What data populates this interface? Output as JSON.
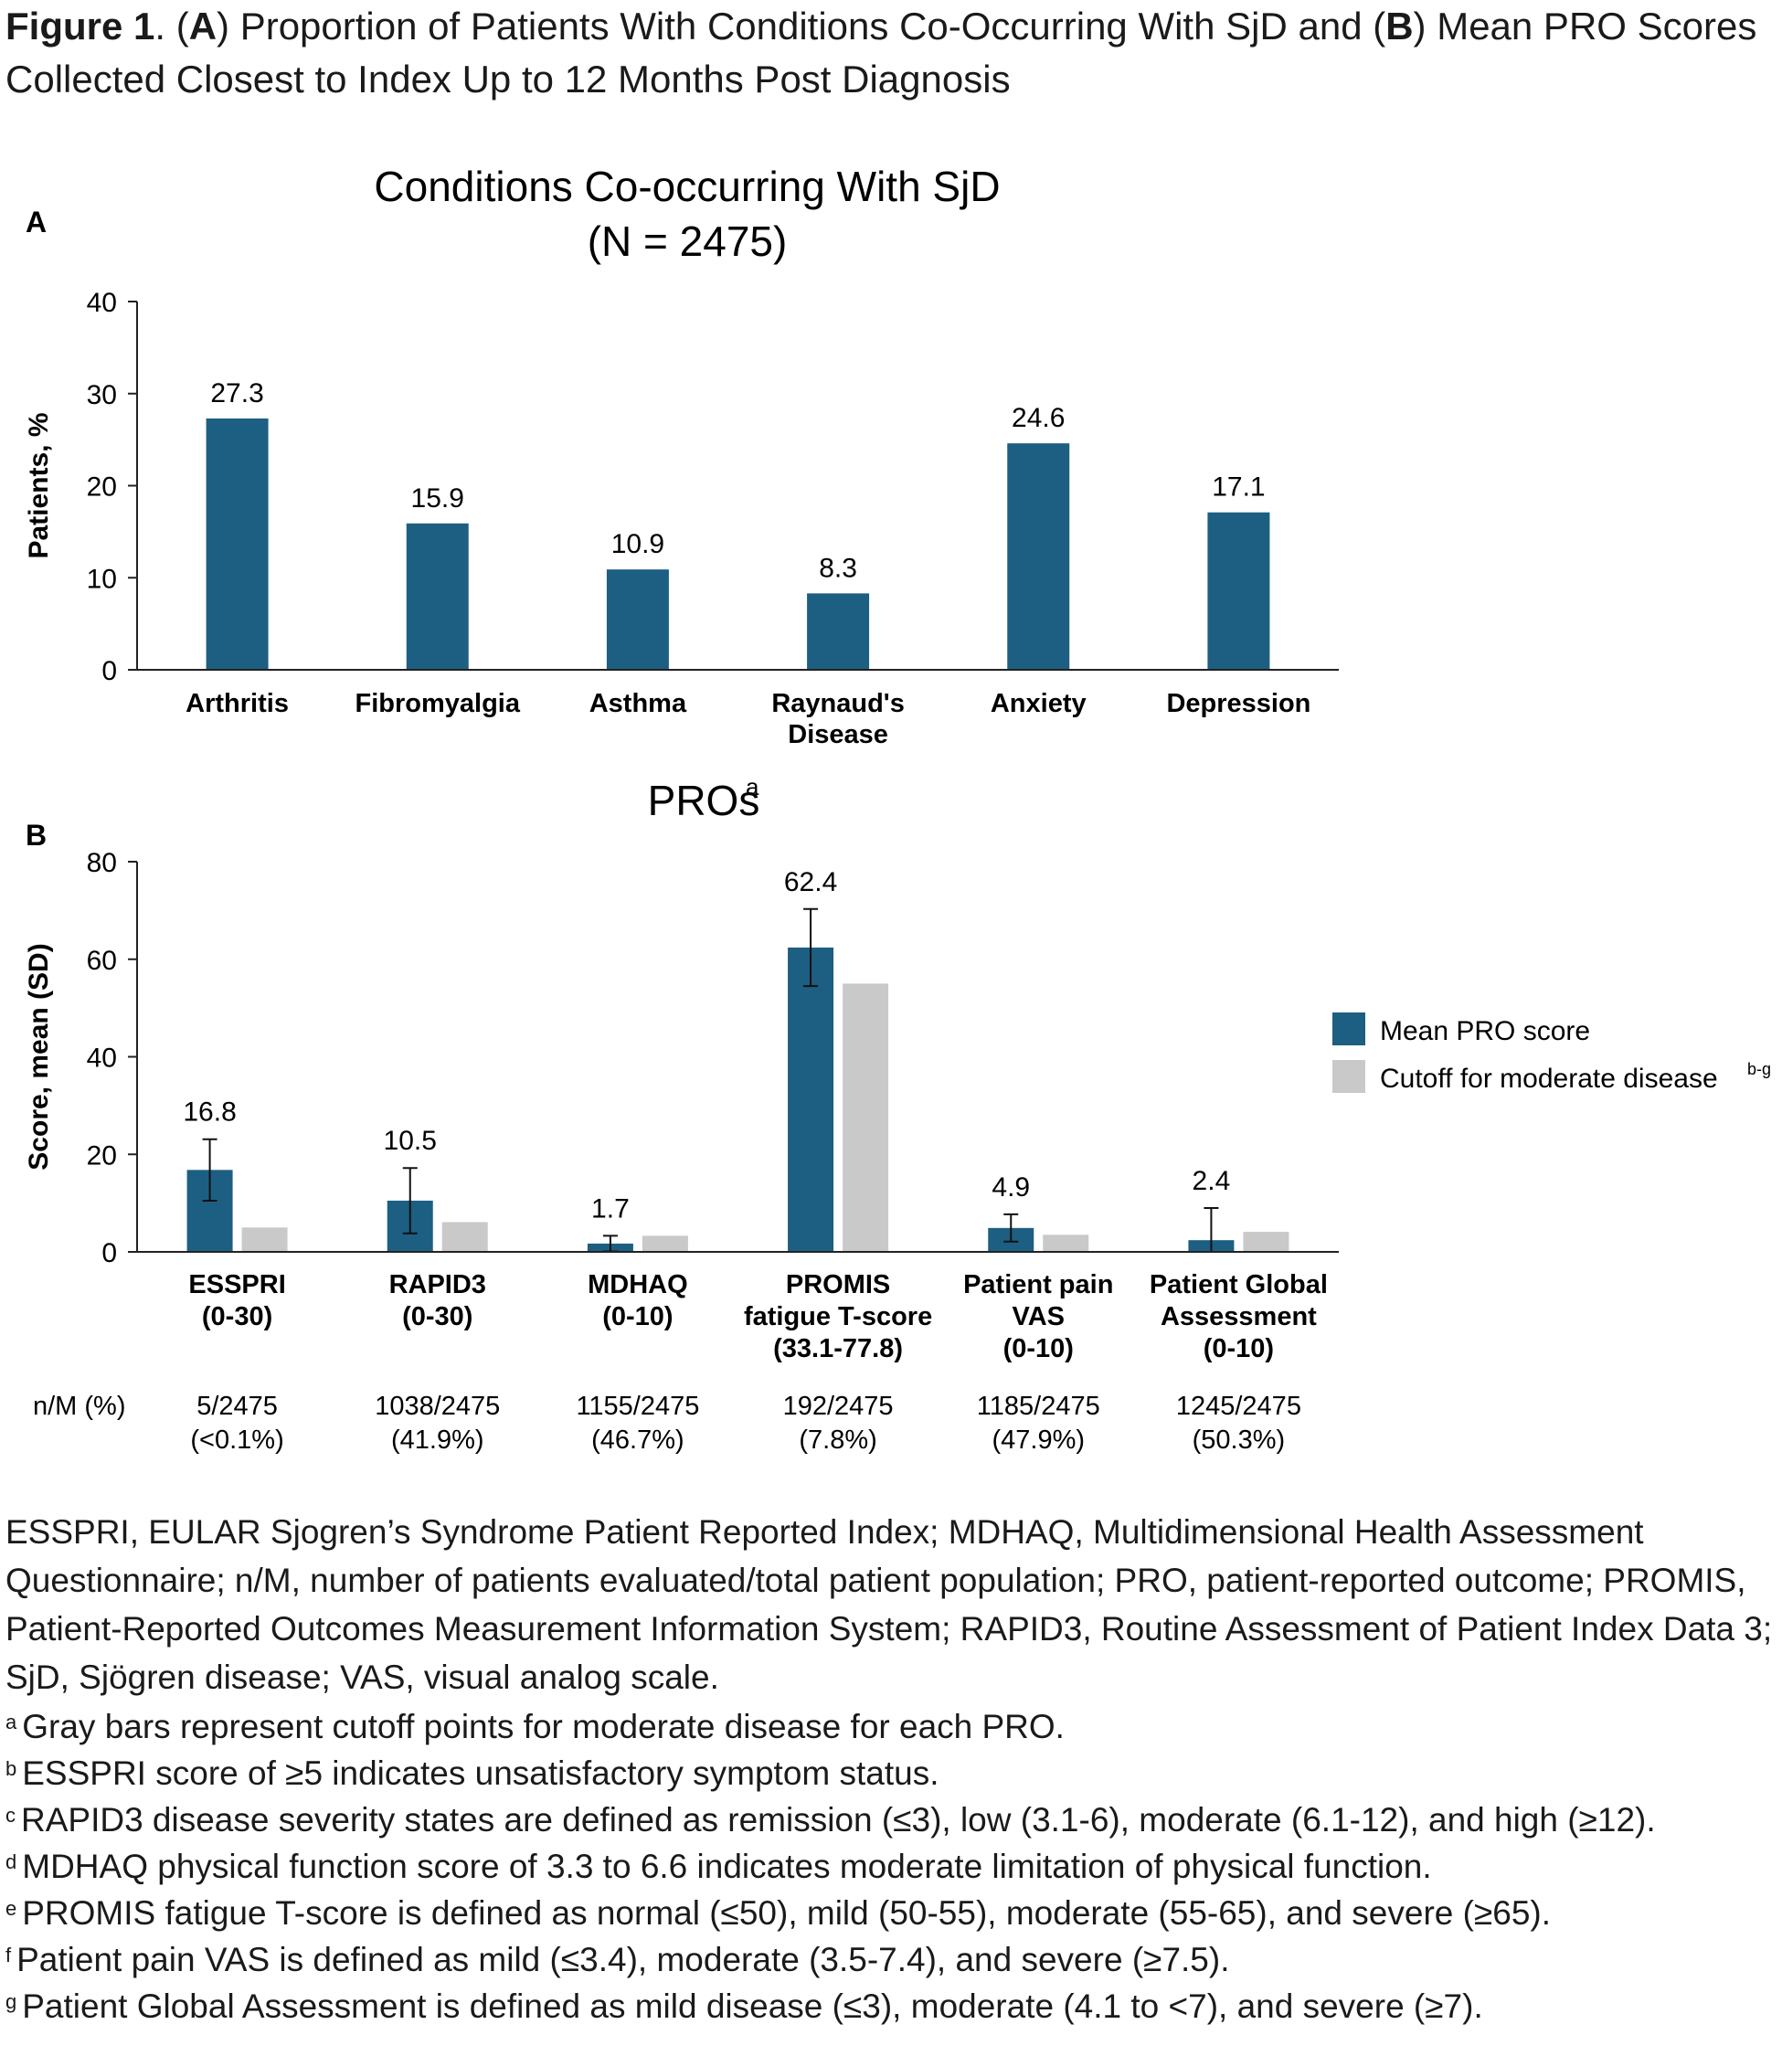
{
  "figure": {
    "label": "Figure 1",
    "part_a": "A",
    "part_b": "B",
    "title_seg1": ". (",
    "title_seg2": ") Proportion of Patients With Conditions Co-Occurring With SjD and (",
    "title_seg3": ") Mean PRO Scores Collected Closest to Index Up to 12 Months Post Diagnosis"
  },
  "colors": {
    "primary": "#1d5f82",
    "cutoff": "#c9c9c9",
    "axis": "#222222"
  },
  "chart_data": [
    {
      "type": "bar",
      "panel_label": "A",
      "title_line1": "Conditions Co-occurring With SjD",
      "title_line2": "(N = 2475)",
      "ylabel": "Patients, %",
      "ylim": [
        0,
        40
      ],
      "yticks": [
        "0",
        "10",
        "20",
        "30",
        "40"
      ],
      "categories": [
        [
          "Arthritis"
        ],
        [
          "Fibromyalgia"
        ],
        [
          "Asthma"
        ],
        [
          "Raynaud's",
          "Disease"
        ],
        [
          "Anxiety"
        ],
        [
          "Depression"
        ]
      ],
      "values": [
        27.3,
        15.9,
        10.9,
        8.3,
        24.6,
        17.1
      ],
      "value_labels": [
        "27.3",
        "15.9",
        "10.9",
        "8.3",
        "24.6",
        "17.1"
      ]
    },
    {
      "type": "bar",
      "panel_label": "B",
      "title": "PROs",
      "title_sup": "a",
      "ylabel": "Score, mean (SD)",
      "ylim": [
        0,
        80
      ],
      "yticks": [
        "0",
        "20",
        "40",
        "60",
        "80"
      ],
      "categories": [
        [
          "ESSPRI",
          "(0-30)"
        ],
        [
          "RAPID3",
          "(0-30)"
        ],
        [
          "MDHAQ",
          "(0-10)"
        ],
        [
          "PROMIS",
          "fatigue T-score",
          "(33.1-77.8)"
        ],
        [
          "Patient pain",
          "VAS",
          "(0-10)"
        ],
        [
          "Patient Global",
          "Assessment",
          "(0-10)"
        ]
      ],
      "series": [
        {
          "name": "Mean PRO score",
          "values": [
            16.8,
            10.5,
            1.7,
            62.4,
            4.9,
            2.4
          ],
          "sd": [
            6.3,
            6.7,
            1.6,
            7.9,
            2.8,
            6.6
          ],
          "value_labels": [
            "16.8",
            "10.5",
            "1.7",
            "62.4",
            "4.9",
            "2.4"
          ]
        },
        {
          "name": "Cutoff for moderate disease",
          "name_sup": "b-g",
          "values": [
            5,
            6.1,
            3.3,
            55,
            3.5,
            4.1
          ]
        }
      ],
      "nm_label": "n/M (%)",
      "nm": [
        [
          "5/2475",
          "(<0.1%)"
        ],
        [
          "1038/2475",
          "(41.9%)"
        ],
        [
          "1155/2475",
          "(46.7%)"
        ],
        [
          "192/2475",
          "(7.8%)"
        ],
        [
          "1185/2475",
          "(47.9%)"
        ],
        [
          "1245/2475",
          "(50.3%)"
        ]
      ]
    }
  ],
  "abbreviations": "ESSPRI, EULAR Sjogren’s Syndrome Patient Reported Index; MDHAQ, Multidimensional Health Assessment Questionnaire; n/M, number of patients evaluated/total patient population; PRO, patient-reported outcome; PROMIS, Patient-Reported Outcomes Measurement Information System; RAPID3, Routine Assessment of Patient Index Data 3; SjD, Sjögren disease; VAS, visual analog scale.",
  "footnotes": [
    {
      "mark": "a",
      "text": "Gray bars represent cutoff points for moderate disease for each PRO."
    },
    {
      "mark": "b",
      "text": "ESSPRI score of ≥5 indicates unsatisfactory symptom status."
    },
    {
      "mark": "c",
      "text": "RAPID3 disease severity states are defined as remission (≤3), low (3.1-6), moderate (6.1-12), and high (≥12)."
    },
    {
      "mark": "d",
      "text": "MDHAQ physical function score of 3.3 to 6.6 indicates moderate limitation of physical function."
    },
    {
      "mark": "e",
      "text": "PROMIS fatigue T-score is defined as normal (≤50), mild (50-55), moderate (55-65), and severe (≥65)."
    },
    {
      "mark": "f",
      "text": "Patient pain VAS is defined as mild (≤3.4), moderate (3.5-7.4), and severe (≥7.5)."
    },
    {
      "mark": "g",
      "text": "Patient Global Assessment is defined as mild disease (≤3), moderate (4.1 to <7), and severe (≥7)."
    }
  ]
}
